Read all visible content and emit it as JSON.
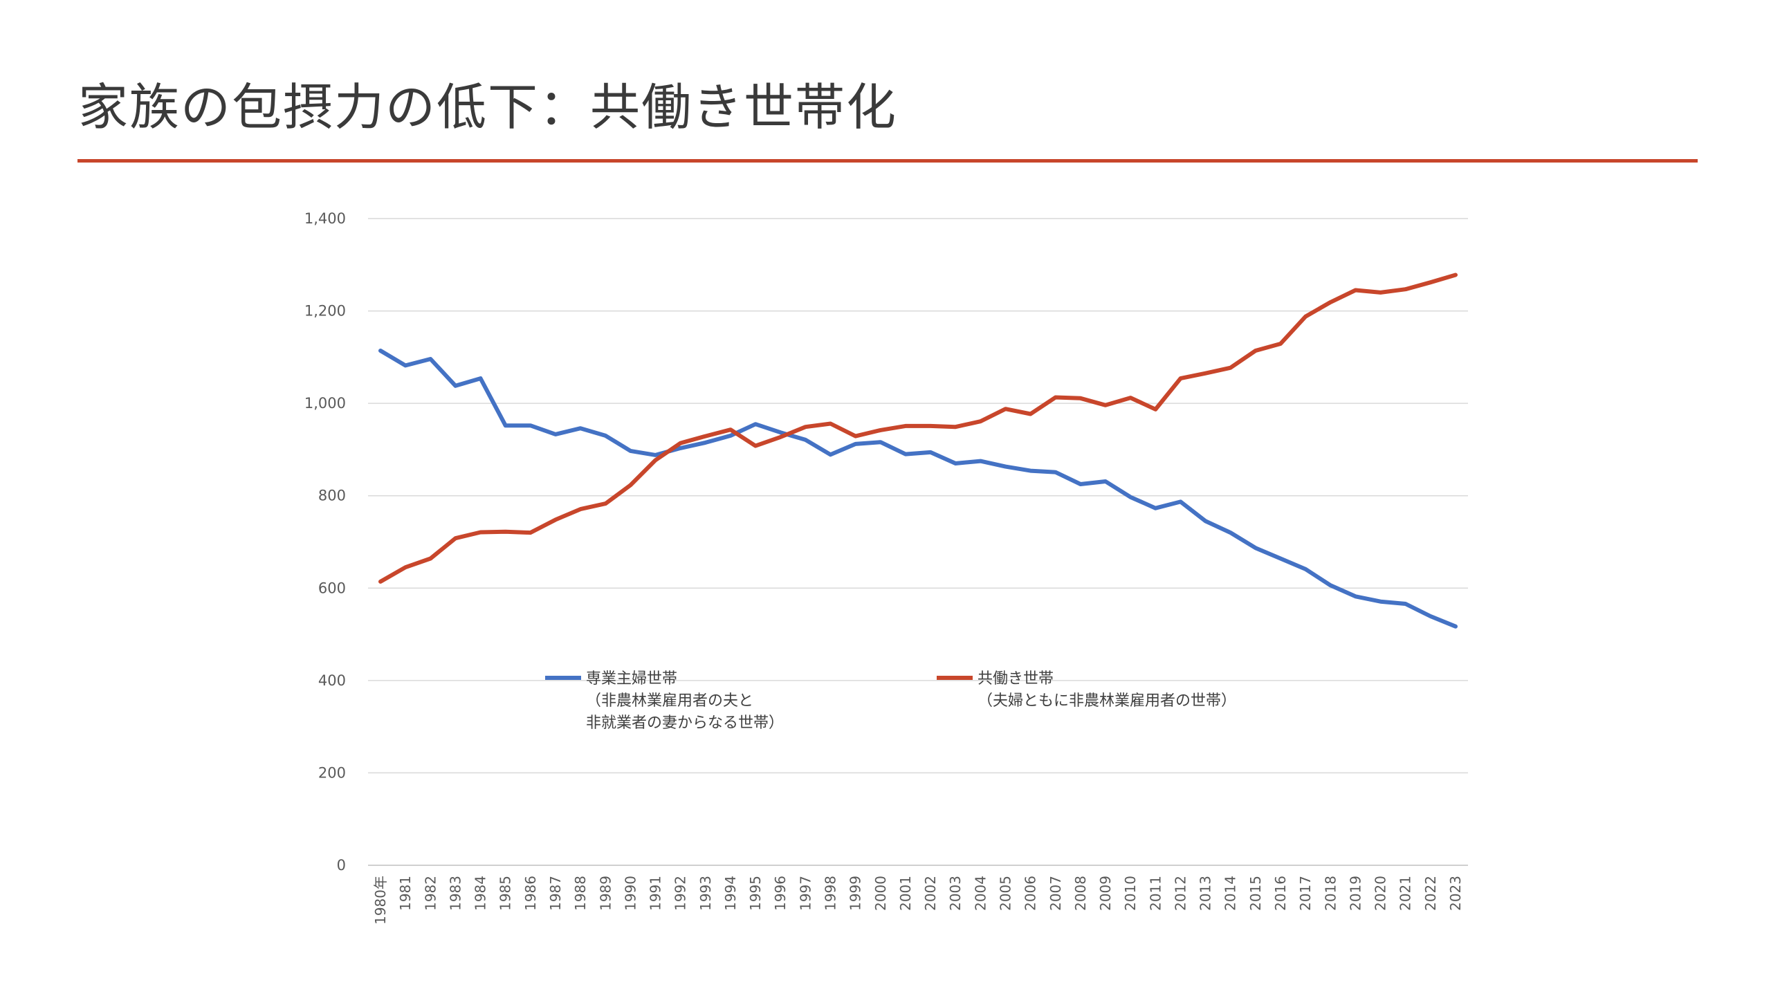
{
  "slide": {
    "title": "家族の包摂力の低下：共働き世帯化"
  },
  "colors": {
    "accent": "#c8462b",
    "series_blue": "#4472c4",
    "series_red": "#c8462b"
  },
  "chart_data": {
    "type": "line",
    "title": "",
    "xlabel": "",
    "ylabel": "",
    "ylim": [
      0,
      1400
    ],
    "yticks": [
      "0",
      "200",
      "400",
      "600",
      "800",
      "1,000",
      "1,200",
      "1,400"
    ],
    "grid": true,
    "x": [
      "1980年",
      "1981",
      "1982",
      "1983",
      "1984",
      "1985",
      "1986",
      "1987",
      "1988",
      "1989",
      "1990",
      "1991",
      "1992",
      "1993",
      "1994",
      "1995",
      "1996",
      "1997",
      "1998",
      "1999",
      "2000",
      "2001",
      "2002",
      "2003",
      "2004",
      "2005",
      "2006",
      "2007",
      "2008",
      "2009",
      "2010",
      "2011",
      "2012",
      "2013",
      "2014",
      "2015",
      "2016",
      "2017",
      "2018",
      "2019",
      "2020",
      "2021",
      "2022",
      "2023"
    ],
    "series": [
      {
        "name": "専業主婦世帯",
        "note_lines": [
          "（非農林業雇用者の夫と",
          "非就業者の妻からなる世帯）"
        ],
        "color": "#4472c4",
        "values": [
          1114,
          1082,
          1096,
          1038,
          1054,
          952,
          952,
          933,
          946,
          930,
          897,
          888,
          903,
          915,
          930,
          955,
          937,
          921,
          889,
          912,
          916,
          890,
          894,
          870,
          875,
          863,
          854,
          851,
          825,
          831,
          797,
          773,
          787,
          745,
          720,
          687,
          664,
          641,
          606,
          582,
          571,
          566,
          539,
          517
        ]
      },
      {
        "name": "共働き世帯",
        "note_lines": [
          "（夫婦ともに非農林業雇用者の世帯）"
        ],
        "color": "#c8462b",
        "values": [
          614,
          645,
          664,
          708,
          721,
          722,
          720,
          748,
          771,
          783,
          823,
          877,
          914,
          929,
          943,
          908,
          927,
          949,
          956,
          929,
          942,
          951,
          951,
          949,
          961,
          988,
          977,
          1013,
          1011,
          996,
          1012,
          987,
          1054,
          1065,
          1077,
          1114,
          1129,
          1188,
          1219,
          1245,
          1240,
          1247,
          1262,
          1278
        ]
      }
    ]
  }
}
